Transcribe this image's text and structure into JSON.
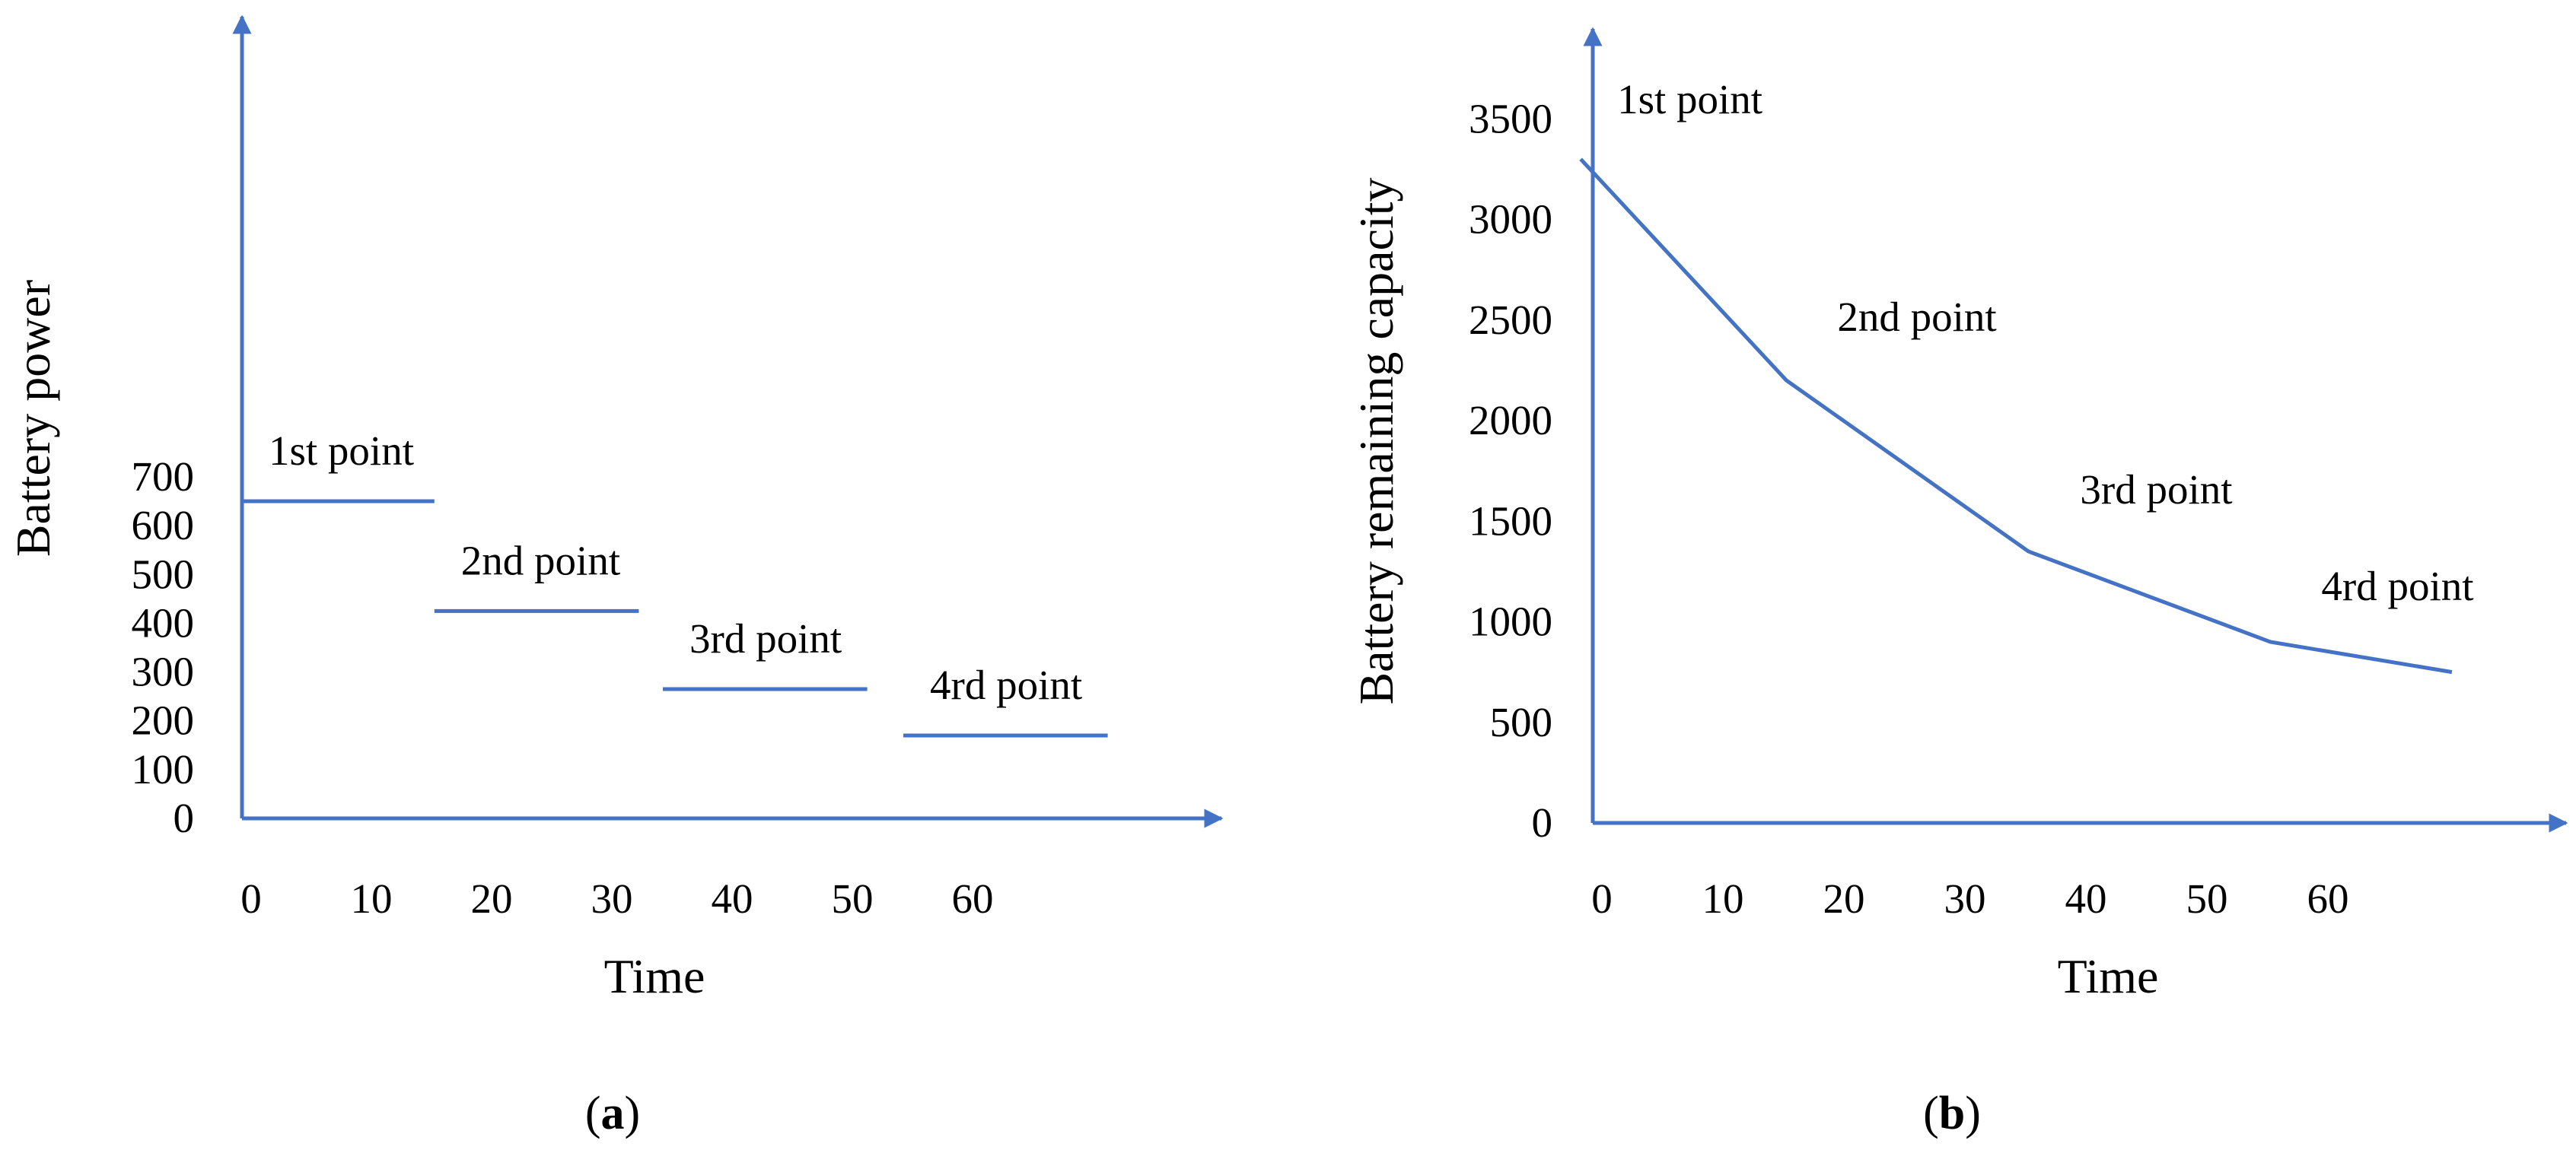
{
  "chart_data": [
    {
      "type": "line",
      "panel_label": "a",
      "xlabel": "Time",
      "ylabel": "Battery power",
      "x_ticks": [
        0,
        10,
        20,
        30,
        40,
        50,
        60
      ],
      "y_ticks": [
        0,
        100,
        200,
        300,
        400,
        500,
        600,
        700
      ],
      "xlim": [
        0,
        70
      ],
      "ylim": [
        0,
        750
      ],
      "grid": false,
      "legend": "none",
      "segments": [
        {
          "label": "1st point",
          "x": [
            0,
            16
          ],
          "y": [
            650,
            650
          ]
        },
        {
          "label": "2nd point",
          "x": [
            16,
            33
          ],
          "y": [
            425,
            425
          ]
        },
        {
          "label": "3rd point",
          "x": [
            35,
            52
          ],
          "y": [
            265,
            265
          ]
        },
        {
          "label": "4rd point",
          "x": [
            55,
            72
          ],
          "y": [
            170,
            170
          ]
        }
      ]
    },
    {
      "type": "line",
      "panel_label": "b",
      "xlabel": "Time",
      "ylabel": "Battery remaining capacity",
      "x_ticks": [
        0,
        10,
        20,
        30,
        40,
        50,
        60
      ],
      "y_ticks": [
        0,
        500,
        1000,
        1500,
        2000,
        2500,
        3000,
        3500
      ],
      "xlim": [
        0,
        70
      ],
      "ylim": [
        0,
        3750
      ],
      "grid": false,
      "legend": "none",
      "series": [
        {
          "x": [
            -1,
            16,
            36,
            56,
            71
          ],
          "y": [
            3300,
            2200,
            1350,
            900,
            750
          ]
        }
      ],
      "annotations": [
        {
          "text": "1st point",
          "x": -1,
          "y": 3300
        },
        {
          "text": "2nd point",
          "x": 16,
          "y": 2200
        },
        {
          "text": "3rd point",
          "x": 36,
          "y": 1350
        },
        {
          "text": "4rd point",
          "x": 56,
          "y": 900
        }
      ]
    }
  ]
}
